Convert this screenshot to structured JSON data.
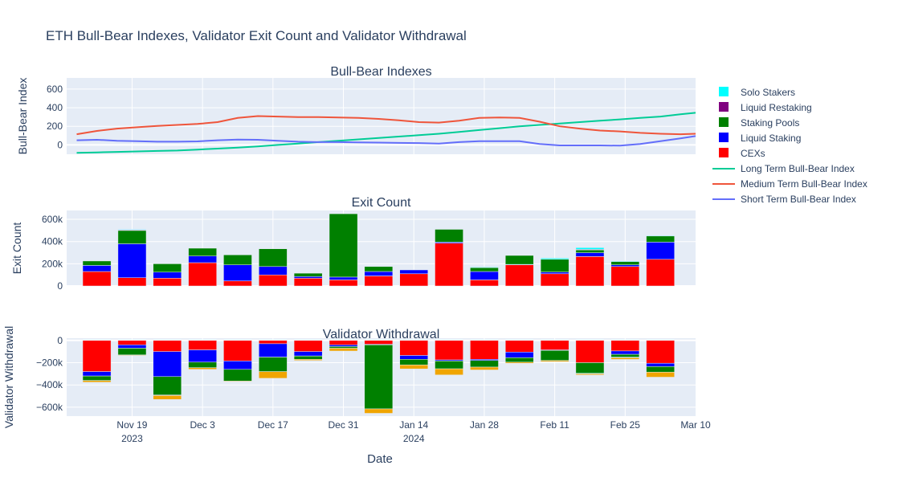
{
  "title": "ETH Bull-Bear Indexes, Validator Exit Count and Validator Withdrawal",
  "colors": {
    "solo": "#00ffff",
    "restaking": "#800080",
    "pools": "#008000",
    "liquid": "#0000ff",
    "cex": "#ff0000",
    "other": "#f0a500",
    "long": "#00cc96",
    "medium": "#ef553b",
    "short": "#636efa"
  },
  "legend": [
    {
      "key": "solo",
      "label": "Solo Stakers",
      "kind": "box"
    },
    {
      "key": "restaking",
      "label": "Liquid Restaking",
      "kind": "box"
    },
    {
      "key": "pools",
      "label": "Staking Pools",
      "kind": "box"
    },
    {
      "key": "liquid",
      "label": "Liquid Staking",
      "kind": "box"
    },
    {
      "key": "cex",
      "label": "CEXs",
      "kind": "box"
    },
    {
      "key": "long",
      "label": "Long Term Bull-Bear Index",
      "kind": "line"
    },
    {
      "key": "medium",
      "label": "Medium Term Bull-Bear Index",
      "kind": "line"
    },
    {
      "key": "short",
      "label": "Short Term Bull-Bear Index",
      "kind": "line"
    }
  ],
  "x_axis": {
    "label": "Date",
    "ticks": [
      {
        "date": "2023-11-19",
        "label": "Nov 19",
        "year": "2023"
      },
      {
        "date": "2023-12-03",
        "label": "Dec 3",
        "year": ""
      },
      {
        "date": "2023-12-17",
        "label": "Dec 17",
        "year": ""
      },
      {
        "date": "2023-12-31",
        "label": "Dec 31",
        "year": ""
      },
      {
        "date": "2024-01-14",
        "label": "Jan 14",
        "year": "2024"
      },
      {
        "date": "2024-01-28",
        "label": "Jan 28",
        "year": ""
      },
      {
        "date": "2024-02-11",
        "label": "Feb 11",
        "year": ""
      },
      {
        "date": "2024-02-25",
        "label": "Feb 25",
        "year": ""
      },
      {
        "date": "2024-03-10",
        "label": "Mar 10",
        "year": ""
      }
    ],
    "range": [
      "2023-11-06",
      "2024-03-10"
    ]
  },
  "chart_data": [
    {
      "type": "line",
      "title": "Bull-Bear Indexes",
      "ylabel": "Bull-Bear Index",
      "ylim": [
        -100,
        720
      ],
      "yticks": [
        0,
        200,
        400,
        600
      ],
      "x": [
        "2023-11-08",
        "2023-11-12",
        "2023-11-16",
        "2023-11-20",
        "2023-11-24",
        "2023-11-28",
        "2023-12-02",
        "2023-12-06",
        "2023-12-10",
        "2023-12-14",
        "2023-12-18",
        "2023-12-22",
        "2023-12-26",
        "2023-12-30",
        "2024-01-03",
        "2024-01-07",
        "2024-01-11",
        "2024-01-15",
        "2024-01-19",
        "2024-01-23",
        "2024-01-27",
        "2024-01-31",
        "2024-02-04",
        "2024-02-08",
        "2024-02-12",
        "2024-02-16",
        "2024-02-20",
        "2024-02-24",
        "2024-02-28",
        "2024-03-03",
        "2024-03-07",
        "2024-03-10"
      ],
      "series": [
        {
          "key": "long",
          "name": "Long Term Bull-Bear Index",
          "values": [
            -85,
            -80,
            -75,
            -70,
            -65,
            -60,
            -50,
            -40,
            -28,
            -15,
            0,
            15,
            30,
            45,
            60,
            75,
            90,
            105,
            120,
            140,
            160,
            180,
            200,
            215,
            230,
            245,
            260,
            275,
            290,
            305,
            330,
            345
          ]
        },
        {
          "key": "medium",
          "name": "Medium Term Bull-Bear Index",
          "values": [
            115,
            150,
            175,
            190,
            205,
            215,
            225,
            245,
            290,
            310,
            305,
            300,
            300,
            295,
            290,
            280,
            265,
            245,
            240,
            260,
            290,
            295,
            290,
            250,
            200,
            175,
            155,
            145,
            130,
            120,
            115,
            120
          ]
        },
        {
          "key": "short",
          "name": "Short Term Bull-Bear Index",
          "values": [
            50,
            55,
            45,
            40,
            35,
            35,
            38,
            50,
            58,
            55,
            45,
            35,
            30,
            30,
            28,
            25,
            22,
            20,
            15,
            30,
            40,
            40,
            40,
            10,
            -5,
            -5,
            -5,
            -8,
            10,
            40,
            70,
            95
          ]
        }
      ]
    },
    {
      "type": "bar",
      "stacked": true,
      "title": "Exit Count",
      "ylabel": "Exit Count",
      "ylim": [
        0,
        680000
      ],
      "yticks": [
        0,
        200000,
        400000,
        600000
      ],
      "ytick_labels": [
        "0",
        "200k",
        "400k",
        "600k"
      ],
      "categories": [
        "2023-11-12",
        "2023-11-19",
        "2023-11-26",
        "2023-12-03",
        "2023-12-10",
        "2023-12-17",
        "2023-12-24",
        "2023-12-31",
        "2024-01-07",
        "2024-01-14",
        "2024-01-21",
        "2024-01-28",
        "2024-02-04",
        "2024-02-11",
        "2024-02-18",
        "2024-02-25",
        "2024-03-03"
      ],
      "series": [
        {
          "key": "cex",
          "name": "CEXs",
          "values": [
            130000,
            75000,
            70000,
            210000,
            45000,
            100000,
            70000,
            55000,
            90000,
            110000,
            385000,
            55000,
            190000,
            110000,
            265000,
            175000,
            240000
          ]
        },
        {
          "key": "liquid",
          "name": "Liquid Staking",
          "values": [
            55000,
            305000,
            55000,
            60000,
            145000,
            75000,
            15000,
            25000,
            40000,
            35000,
            10000,
            75000,
            5000,
            15000,
            35000,
            15000,
            155000
          ]
        },
        {
          "key": "pools",
          "name": "Staking Pools",
          "values": [
            40000,
            120000,
            75000,
            70000,
            90000,
            160000,
            30000,
            570000,
            45000,
            0,
            115000,
            35000,
            80000,
            115000,
            25000,
            30000,
            55000
          ]
        },
        {
          "key": "restaking",
          "name": "Liquid Restaking",
          "values": [
            0,
            5000,
            0,
            0,
            0,
            0,
            0,
            0,
            0,
            0,
            0,
            0,
            0,
            0,
            5000,
            0,
            0
          ]
        },
        {
          "key": "solo",
          "name": "Solo Stakers",
          "values": [
            0,
            5000,
            0,
            0,
            0,
            0,
            0,
            0,
            0,
            0,
            0,
            5000,
            0,
            10000,
            15000,
            5000,
            5000
          ]
        }
      ]
    },
    {
      "type": "bar",
      "stacked": true,
      "title": "Validator Withdrawal",
      "ylabel": "Validator Withdrawal",
      "ylim": [
        -680000,
        20000
      ],
      "yticks": [
        -600000,
        -400000,
        -200000,
        0
      ],
      "ytick_labels": [
        "−600k",
        "−400k",
        "−200k",
        "0"
      ],
      "categories": [
        "2023-11-12",
        "2023-11-19",
        "2023-11-26",
        "2023-12-03",
        "2023-12-10",
        "2023-12-17",
        "2023-12-24",
        "2023-12-31",
        "2024-01-07",
        "2024-01-14",
        "2024-01-21",
        "2024-01-28",
        "2024-02-04",
        "2024-02-11",
        "2024-02-18",
        "2024-02-25",
        "2024-03-03"
      ],
      "series": [
        {
          "key": "cex",
          "name": "CEXs",
          "values": [
            -280000,
            -40000,
            -100000,
            -85000,
            -185000,
            -30000,
            -100000,
            -40000,
            -35000,
            -135000,
            -175000,
            -170000,
            -105000,
            -85000,
            -200000,
            -95000,
            -205000
          ]
        },
        {
          "key": "liquid",
          "name": "Liquid Staking",
          "values": [
            -40000,
            -30000,
            -225000,
            -110000,
            -75000,
            -120000,
            -40000,
            -15000,
            -5000,
            -35000,
            -10000,
            -10000,
            -50000,
            -5000,
            0,
            -30000,
            -30000
          ]
        },
        {
          "key": "pools",
          "name": "Staking Pools",
          "values": [
            -40000,
            -60000,
            -165000,
            -50000,
            -105000,
            -130000,
            -30000,
            -15000,
            -575000,
            -50000,
            -70000,
            -60000,
            -40000,
            -90000,
            -95000,
            -25000,
            -50000
          ]
        },
        {
          "key": "restaking",
          "name": "Liquid Restaking",
          "values": [
            0,
            0,
            -5000,
            0,
            0,
            0,
            0,
            0,
            0,
            0,
            0,
            0,
            0,
            0,
            0,
            0,
            0
          ]
        },
        {
          "key": "solo",
          "name": "Solo Stakers",
          "values": [
            0,
            0,
            0,
            0,
            0,
            0,
            0,
            0,
            0,
            0,
            0,
            0,
            0,
            0,
            -5000,
            -5000,
            0
          ]
        },
        {
          "key": "other",
          "name": "",
          "values": [
            -15000,
            -5000,
            -35000,
            -15000,
            -5000,
            -60000,
            -10000,
            -25000,
            -40000,
            -35000,
            -55000,
            -25000,
            -10000,
            -10000,
            -10000,
            -15000,
            -45000
          ]
        }
      ]
    }
  ]
}
